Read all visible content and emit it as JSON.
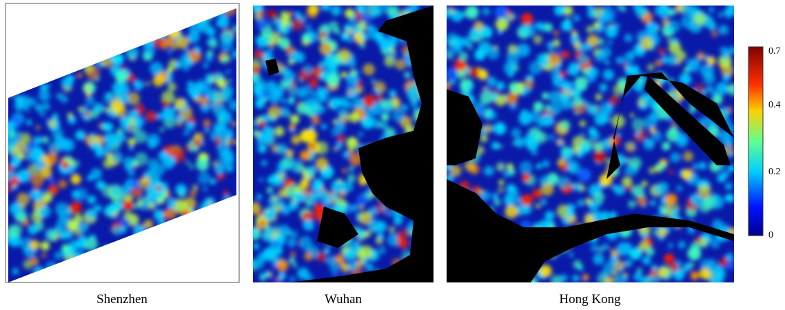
{
  "panels": [
    {
      "label": "Shenzhen"
    },
    {
      "label": "Wuhan"
    },
    {
      "label": "Hong Kong"
    }
  ],
  "colorbar": {
    "labels": [
      "0.7",
      "0.4",
      "0.2",
      "0"
    ]
  }
}
